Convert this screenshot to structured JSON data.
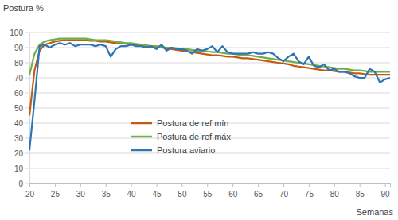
{
  "chart_data": {
    "type": "line",
    "y_label": "Postura %",
    "x_label": "Semanas",
    "x": [
      20,
      21,
      22,
      23,
      24,
      25,
      26,
      27,
      28,
      29,
      30,
      31,
      32,
      33,
      34,
      35,
      36,
      37,
      38,
      39,
      40,
      41,
      42,
      43,
      44,
      45,
      46,
      47,
      48,
      49,
      50,
      51,
      52,
      53,
      54,
      55,
      56,
      57,
      58,
      59,
      60,
      61,
      62,
      63,
      64,
      65,
      66,
      67,
      68,
      69,
      70,
      71,
      72,
      73,
      74,
      75,
      76,
      77,
      78,
      79,
      80,
      81,
      82,
      83,
      84,
      85,
      86,
      87,
      88,
      89,
      90,
      91
    ],
    "series": [
      {
        "name": "Postura de ref mín",
        "color": "#c55a11",
        "values": [
          45,
          75,
          88,
          92,
          93,
          94,
          94.5,
          95,
          95,
          95,
          95,
          95,
          94.5,
          94.5,
          94,
          94,
          93.5,
          93,
          93,
          92.5,
          92,
          92,
          91.5,
          91,
          90.5,
          90,
          90,
          89.5,
          89,
          88.5,
          88,
          87.5,
          87,
          86.5,
          86,
          85.5,
          85,
          85,
          84.5,
          84,
          84,
          83.5,
          83,
          83,
          82.5,
          82,
          81.5,
          81,
          80.5,
          80,
          79.5,
          79,
          78,
          77.5,
          77,
          76.5,
          76,
          75.5,
          75,
          75,
          74.5,
          74,
          74,
          73.5,
          73,
          73,
          72.5,
          72,
          72,
          72,
          72,
          72
        ]
      },
      {
        "name": "Postura de ref máx",
        "color": "#70ad47",
        "values": [
          72,
          86,
          92,
          94,
          95,
          95.5,
          96,
          96,
          96,
          96,
          96,
          96,
          95.5,
          95,
          95,
          95,
          94.5,
          94,
          93.5,
          93,
          93,
          92.5,
          92,
          91.5,
          91,
          91,
          90.5,
          90,
          90,
          89.5,
          89,
          89,
          88.5,
          88,
          88,
          87.5,
          87,
          87,
          86.5,
          86,
          86,
          85.5,
          85,
          85,
          84.5,
          84,
          83.5,
          83,
          82.5,
          82,
          81.5,
          81,
          80.5,
          80,
          79.5,
          79,
          78.5,
          78,
          77.5,
          77,
          76.5,
          76,
          76,
          75.5,
          75,
          75,
          74.5,
          74,
          74,
          74,
          74,
          74
        ]
      },
      {
        "name": "Postura aviario",
        "color": "#2e75b6",
        "values": [
          22,
          55,
          91,
          92,
          90,
          92,
          93,
          92,
          93,
          91,
          92,
          92,
          92,
          91,
          92,
          91,
          84,
          89,
          91,
          91,
          92,
          91,
          91,
          90,
          91,
          89,
          92,
          88,
          90,
          89,
          89,
          88,
          86,
          89,
          88,
          89,
          91,
          87,
          91,
          87,
          86,
          86,
          86,
          86,
          87,
          86,
          86,
          87,
          86,
          83,
          81,
          84,
          86,
          81,
          79,
          84,
          78,
          77,
          79,
          75,
          76,
          74,
          74,
          73,
          71,
          70,
          70,
          76,
          74,
          67,
          69,
          70
        ]
      }
    ],
    "xlim": [
      20,
      91
    ],
    "xticks": [
      20,
      25,
      30,
      35,
      40,
      45,
      50,
      55,
      60,
      65,
      70,
      75,
      80,
      85,
      90
    ],
    "ylim": [
      0,
      100
    ],
    "yticks": [
      0,
      10,
      20,
      30,
      40,
      50,
      60,
      70,
      80,
      90,
      100
    ],
    "grid": true,
    "legend": "lower left"
  }
}
